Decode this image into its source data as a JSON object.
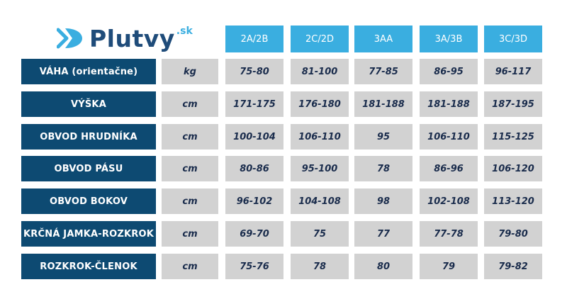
{
  "logo": {
    "name": "Plutvy",
    "suffix": ".sk",
    "icon": "fin-arrows-icon"
  },
  "colors": {
    "header_bg": "#3aaee0",
    "label_bg": "#0d4a72",
    "cell_bg": "#d2d2d2",
    "value_text": "#1a2c4c"
  },
  "table": {
    "sizes": [
      "2A/2B",
      "2C/2D",
      "3AA",
      "3A/3B",
      "3C/3D"
    ],
    "rows": [
      {
        "label": "VÁHA (orientačne)",
        "unit": "kg",
        "values": [
          "75-80",
          "81-100",
          "77-85",
          "86-95",
          "96-117"
        ]
      },
      {
        "label": "VÝŠKA",
        "unit": "cm",
        "values": [
          "171-175",
          "176-180",
          "181-188",
          "181-188",
          "187-195"
        ]
      },
      {
        "label": "OBVOD HRUDNÍKA",
        "unit": "cm",
        "values": [
          "100-104",
          "106-110",
          "95",
          "106-110",
          "115-125"
        ]
      },
      {
        "label": "OBVOD PÁSU",
        "unit": "cm",
        "values": [
          "80-86",
          "95-100",
          "78",
          "86-96",
          "106-120"
        ]
      },
      {
        "label": "OBVOD BOKOV",
        "unit": "cm",
        "values": [
          "96-102",
          "104-108",
          "98",
          "102-108",
          "113-120"
        ]
      },
      {
        "label": "KRČNÁ JAMKA-ROZKROK",
        "unit": "cm",
        "values": [
          "69-70",
          "75",
          "77",
          "77-78",
          "79-80"
        ]
      },
      {
        "label": "ROZKROK-ČLENOK",
        "unit": "cm",
        "values": [
          "75-76",
          "78",
          "80",
          "79",
          "79-82"
        ]
      }
    ]
  }
}
